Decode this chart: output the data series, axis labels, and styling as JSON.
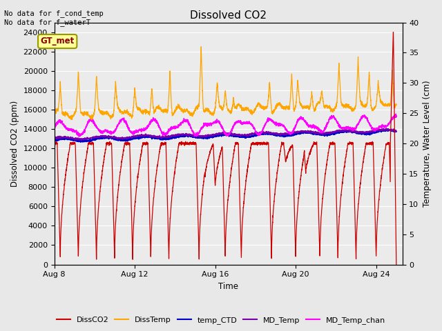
{
  "title": "Dissolved CO2",
  "xlabel": "Time",
  "ylabel_left": "Dissolved CO2 (ppm)",
  "ylabel_right": "Temperature, Water Level (cm)",
  "top_text": "No data for f_cond_temp\nNo data for f_waterT",
  "legend_box_label": "GT_met",
  "x_tick_days": [
    8,
    12,
    16,
    20,
    24
  ],
  "ylim_left": [
    0,
    25000
  ],
  "ylim_right": [
    0,
    40
  ],
  "yticks_left": [
    0,
    2000,
    4000,
    6000,
    8000,
    10000,
    12000,
    14000,
    16000,
    18000,
    20000,
    22000,
    24000
  ],
  "yticks_right": [
    0,
    5,
    10,
    15,
    20,
    25,
    30,
    35,
    40
  ],
  "bg_color": "#e8e8e8",
  "plot_bg_color": "#ebebeb",
  "line_colors": {
    "DissCO2": "#cc0000",
    "DissTemp": "#ffa500",
    "temp_CTD": "#0000cc",
    "MD_Temp": "#7700aa",
    "MD_Temp_chan": "#ff00ff"
  },
  "legend_box_color": "#ffff99",
  "legend_box_border": "#999900",
  "grid_color": "#ffffff",
  "figsize": [
    6.4,
    4.8
  ],
  "dpi": 100
}
